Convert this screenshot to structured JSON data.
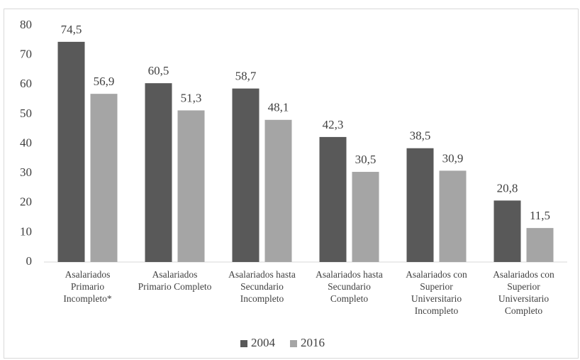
{
  "chart_data": {
    "type": "bar",
    "categories": [
      "Asalariados Primario Incompleto*",
      "Asalariados Primario Completo",
      "Asalariados hasta Secundario Incompleto",
      "Asalariados hasta Secundario Completo",
      "Asalariados con Superior Universitario Incompleto",
      "Asalariados con Superior Universitario Completo"
    ],
    "series": [
      {
        "name": "2004",
        "color": "#595959",
        "values": [
          74.5,
          60.5,
          58.7,
          42.3,
          38.5,
          20.8
        ],
        "value_labels": [
          "74,5",
          "60,5",
          "58,7",
          "42,3",
          "38,5",
          "20,8"
        ]
      },
      {
        "name": "2016",
        "color": "#a5a5a5",
        "values": [
          56.9,
          51.3,
          48.1,
          30.5,
          30.9,
          11.5
        ],
        "value_labels": [
          "56,9",
          "51,3",
          "48,1",
          "30,5",
          "30,9",
          "11,5"
        ]
      }
    ],
    "ylim": [
      0,
      80
    ],
    "yticks": [
      0,
      10,
      20,
      30,
      40,
      50,
      60,
      70,
      80
    ],
    "grid": false,
    "legend": "bottom"
  }
}
